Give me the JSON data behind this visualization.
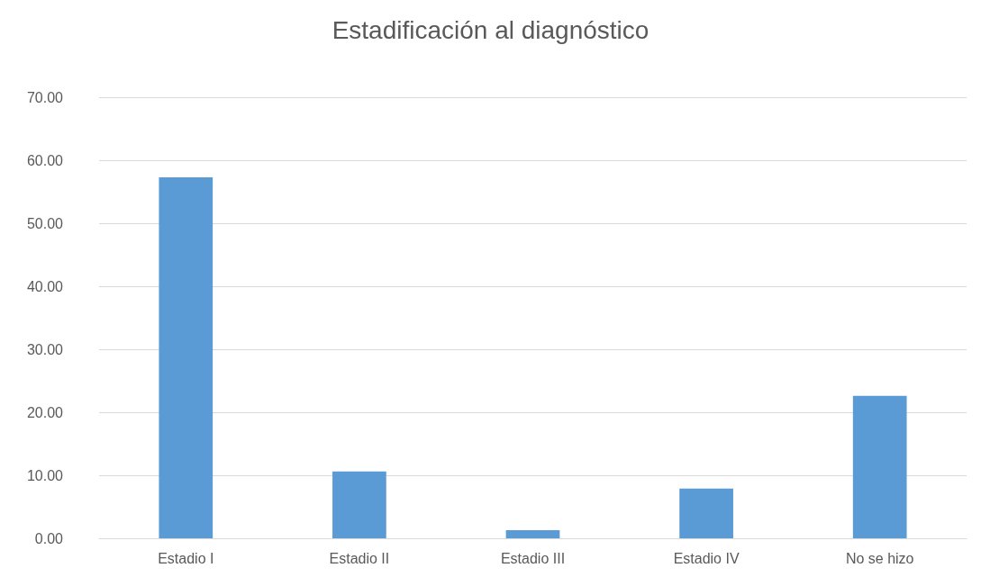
{
  "chart_data": {
    "type": "bar",
    "title": "Estadificación al diagnóstico",
    "categories": [
      "Estadio I",
      "Estadio II",
      "Estadio III",
      "Estadio IV",
      "No se hizo"
    ],
    "values": [
      57.3,
      10.6,
      1.3,
      7.9,
      22.6
    ],
    "color": "#5b9bd5",
    "ylim": [
      0,
      70
    ],
    "yticks": [
      {
        "value": 0,
        "label": "0.00"
      },
      {
        "value": 10,
        "label": "10.00"
      },
      {
        "value": 20,
        "label": "20.00"
      },
      {
        "value": 30,
        "label": "30.00"
      },
      {
        "value": 40,
        "label": "40.00"
      },
      {
        "value": 50,
        "label": "50.00"
      },
      {
        "value": 60,
        "label": "60.00"
      },
      {
        "value": 70,
        "label": "70.00"
      }
    ],
    "grid": true
  }
}
